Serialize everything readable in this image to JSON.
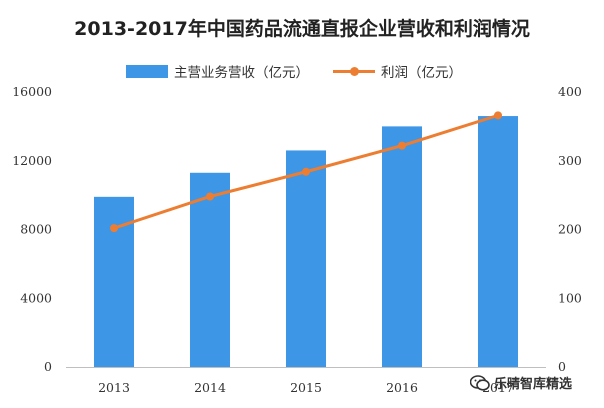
{
  "colors": {
    "bar": "#3e96e6",
    "line": "#ed7d31",
    "axis": "#bfbfbf",
    "text": "#333333"
  },
  "watermark": {
    "icon": "wechat-icon",
    "text": "乐晴智库精选"
  },
  "chart_data": {
    "type": "bar",
    "title": "2013-2017年中国药品流通直报企业营收和利润情况",
    "categories": [
      "2013",
      "2014",
      "2015",
      "2016",
      "2017"
    ],
    "series": [
      {
        "name": "主营业务营收（亿元）",
        "type": "bar",
        "axis": "left",
        "values": [
          9900,
          11300,
          12600,
          14000,
          14600
        ]
      },
      {
        "name": "利润（亿元）",
        "type": "line",
        "axis": "right",
        "values": [
          202,
          248,
          284,
          322,
          366
        ]
      }
    ],
    "ylim": [
      0,
      16000
    ],
    "yticks": [
      "0",
      "4000",
      "8000",
      "12000",
      "16000"
    ],
    "y2lim": [
      0,
      400
    ],
    "y2ticks": [
      "0",
      "100",
      "200",
      "300",
      "400"
    ],
    "grid": false,
    "legend": "top-center"
  }
}
